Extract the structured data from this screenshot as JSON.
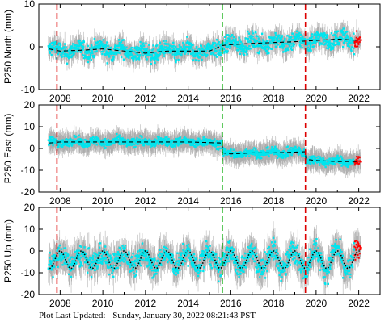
{
  "chart_data": [
    {
      "type": "scatter",
      "ylabel": "P250 North (mm)",
      "xlim": [
        2007.0,
        2023.0
      ],
      "ylim": [
        -10,
        10
      ],
      "yticks": [
        -10,
        0,
        10
      ],
      "xticks": [
        2008,
        2010,
        2012,
        2014,
        2016,
        2018,
        2020,
        2022
      ],
      "grid": false,
      "series": [
        {
          "role": "error-bars",
          "color": "#a9a9a9"
        },
        {
          "role": "daily-solutions",
          "color": "#00e5ee"
        },
        {
          "role": "recent-solutions",
          "color": "#ff0000",
          "x_range": [
            2021.8,
            2022.08
          ]
        },
        {
          "role": "model-fit",
          "color": "#000000",
          "style": "dashed",
          "x": [
            2007.5,
            2008.0,
            2009.0,
            2010.0,
            2011.0,
            2012.0,
            2013.0,
            2014.0,
            2015.0,
            2015.6,
            2016.0,
            2017.0,
            2018.0,
            2019.0,
            2020.0,
            2021.0,
            2022.0
          ],
          "y": [
            -0.5,
            -1.0,
            -0.8,
            -0.5,
            -1.0,
            -1.5,
            -1.0,
            -1.0,
            -1.0,
            0.3,
            0.5,
            0.8,
            1.0,
            1.2,
            1.5,
            1.8,
            1.5
          ]
        }
      ],
      "vlines": [
        {
          "x": 2007.85,
          "color": "#dd0000",
          "style": "dashed"
        },
        {
          "x": 2015.6,
          "color": "#00aa00",
          "style": "dashed"
        },
        {
          "x": 2019.5,
          "color": "#dd0000",
          "style": "dashed"
        }
      ]
    },
    {
      "type": "scatter",
      "ylabel": "P250 East (mm)",
      "xlim": [
        2007.0,
        2023.0
      ],
      "ylim": [
        -20,
        20
      ],
      "yticks": [
        -20,
        -10,
        0,
        10,
        20
      ],
      "xticks": [
        2008,
        2010,
        2012,
        2014,
        2016,
        2018,
        2020,
        2022
      ],
      "grid": false,
      "series": [
        {
          "role": "error-bars",
          "color": "#a9a9a9"
        },
        {
          "role": "daily-solutions",
          "color": "#00e5ee"
        },
        {
          "role": "recent-solutions",
          "color": "#ff0000",
          "x_range": [
            2021.8,
            2022.08
          ]
        },
        {
          "role": "model-fit",
          "color": "#000000",
          "style": "dashed",
          "x": [
            2007.5,
            2008.0,
            2010.0,
            2012.0,
            2014.0,
            2015.6,
            2015.61,
            2016.0,
            2017.0,
            2018.0,
            2019.5,
            2019.51,
            2020.0,
            2021.0,
            2022.0
          ],
          "y": [
            2.5,
            3.0,
            3.0,
            3.0,
            3.0,
            2.5,
            -2.0,
            -2.5,
            -2.0,
            -2.0,
            -1.5,
            -5.0,
            -5.5,
            -6.0,
            -6.0
          ]
        }
      ],
      "vlines": [
        {
          "x": 2007.85,
          "color": "#dd0000",
          "style": "dashed"
        },
        {
          "x": 2015.6,
          "color": "#00aa00",
          "style": "dashed"
        },
        {
          "x": 2019.5,
          "color": "#dd0000",
          "style": "dashed"
        }
      ]
    },
    {
      "type": "scatter",
      "ylabel": "P250 Up (mm)",
      "xlim": [
        2007.0,
        2023.0
      ],
      "ylim": [
        -20,
        20
      ],
      "yticks": [
        -20,
        -10,
        0,
        10,
        20
      ],
      "xticks": [
        2008,
        2010,
        2012,
        2014,
        2016,
        2018,
        2020,
        2022
      ],
      "grid": false,
      "series": [
        {
          "role": "error-bars",
          "color": "#a9a9a9"
        },
        {
          "role": "daily-solutions",
          "color": "#00e5ee"
        },
        {
          "role": "recent-solutions",
          "color": "#ff0000",
          "x_range": [
            2021.8,
            2022.08
          ]
        },
        {
          "role": "model-fit",
          "color": "#000000",
          "style": "dotted",
          "model": "seasonal",
          "x_range": [
            2007.5,
            2022.05
          ],
          "offset": -4.0,
          "amplitude": 4.0,
          "period_years": 1.0,
          "phase_peak": 2008.0
        }
      ],
      "vlines": [
        {
          "x": 2007.85,
          "color": "#dd0000",
          "style": "dashed"
        },
        {
          "x": 2015.6,
          "color": "#00aa00",
          "style": "dashed"
        },
        {
          "x": 2019.5,
          "color": "#dd0000",
          "style": "dashed"
        }
      ]
    }
  ],
  "footer": {
    "label": "Plot Last Updated:",
    "value": "Sunday, January 30, 2022 08:21:43 PST"
  }
}
